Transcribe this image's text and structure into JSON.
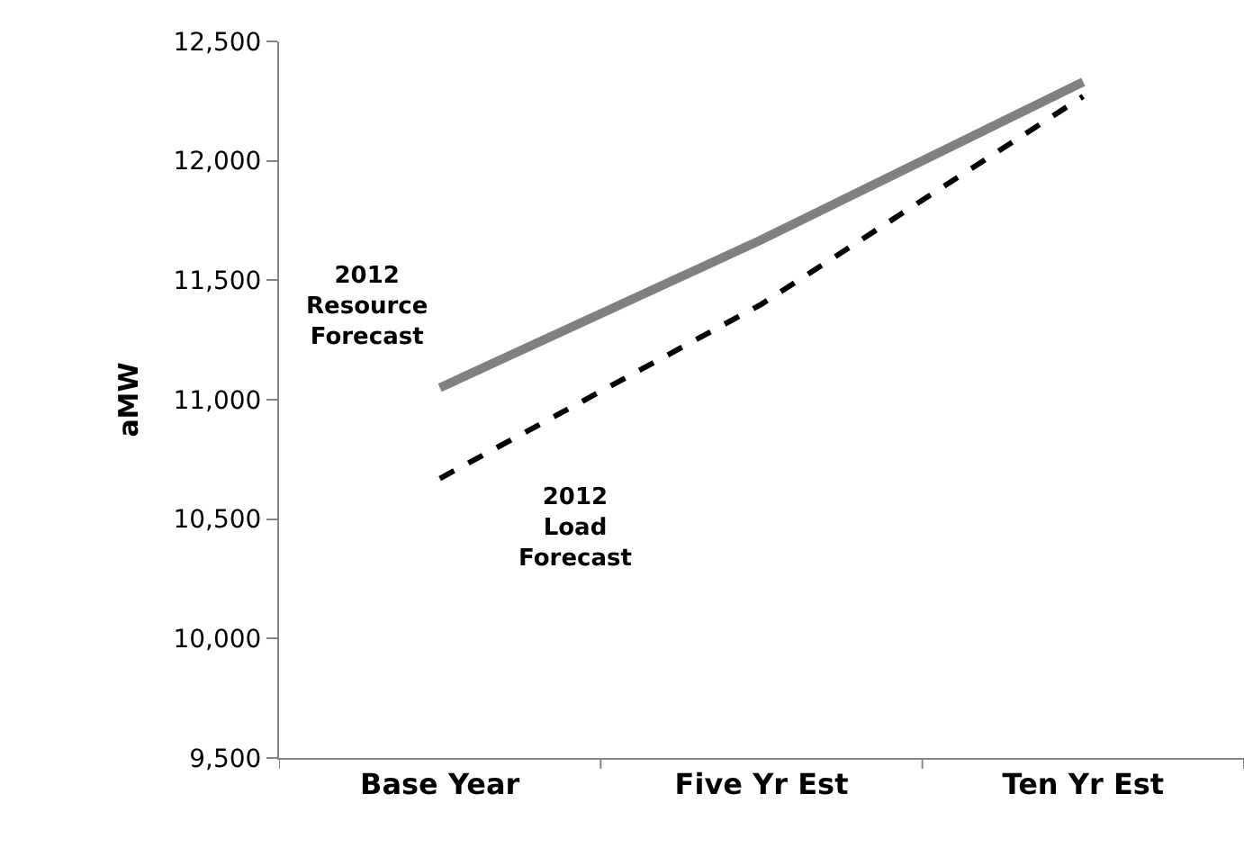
{
  "chart_data": {
    "type": "line",
    "ylabel": "aMW",
    "categories": [
      "Base Year",
      "Five Yr Est",
      "Ten Yr Est"
    ],
    "series": [
      {
        "name": "2012 Resource Forecast",
        "color": "#808080",
        "values": [
          11050,
          11670,
          12330
        ],
        "line_style": "solid"
      },
      {
        "name": "2012 Load Forecast",
        "color": "#000000",
        "values": [
          10670,
          11400,
          12270
        ],
        "line_style": "dashed"
      }
    ],
    "ylim": [
      9500,
      12500
    ],
    "yticks": [
      {
        "value": 9500,
        "label": "9,500"
      },
      {
        "value": 10000,
        "label": "10,000"
      },
      {
        "value": 10500,
        "label": "10,500"
      },
      {
        "value": 11000,
        "label": "11,000"
      },
      {
        "value": 11500,
        "label": "11,500"
      },
      {
        "value": 12000,
        "label": "12,000"
      },
      {
        "value": 12500,
        "label": "12,500"
      }
    ],
    "legend": false,
    "marker": "none"
  }
}
